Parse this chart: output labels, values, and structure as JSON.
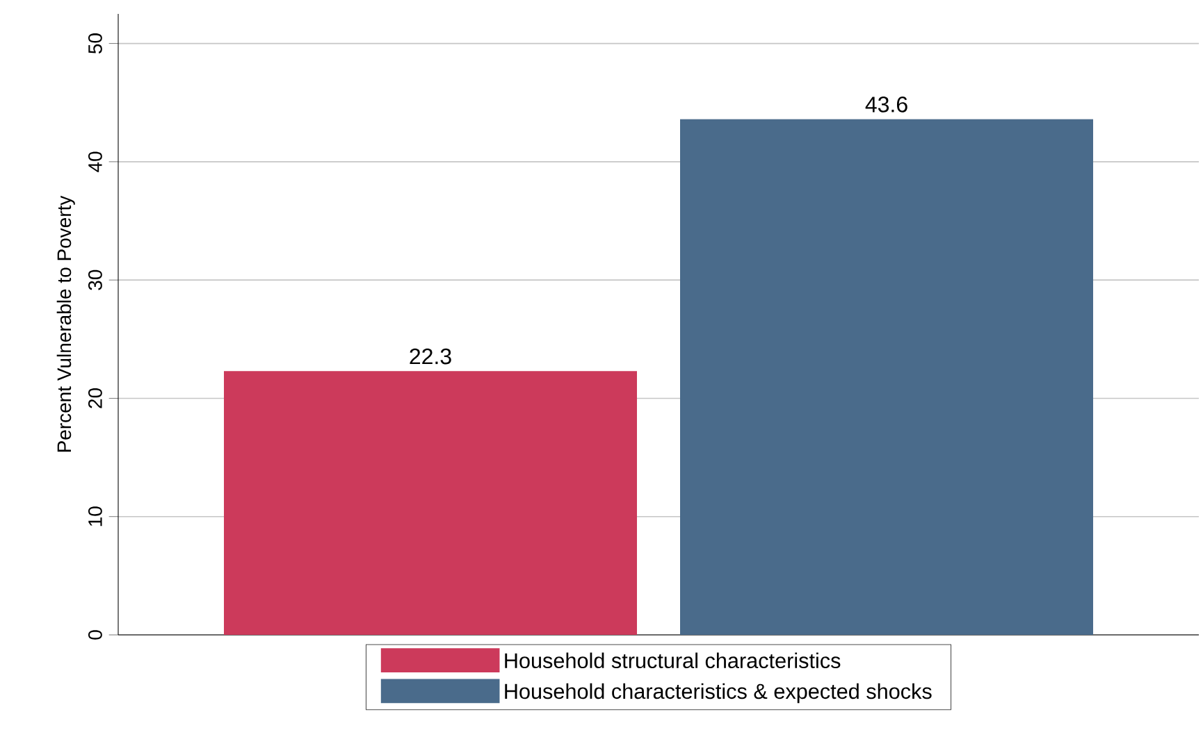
{
  "chart_data": {
    "type": "bar",
    "ylabel": "Percent Vulnerable to Poverty",
    "categories": [
      null
    ],
    "series": [
      {
        "name": "Household structural characteristics",
        "color": "#cc3a5b",
        "values": [
          22.3
        ]
      },
      {
        "name": "Household characteristics & expected shocks",
        "color": "#4a6b8b",
        "values": [
          43.6
        ]
      }
    ],
    "ylim": [
      0,
      52.5
    ],
    "yticks": [
      0,
      10,
      20,
      30,
      40,
      50
    ],
    "grid": "y",
    "legend": "bottom",
    "data_labels": true
  }
}
